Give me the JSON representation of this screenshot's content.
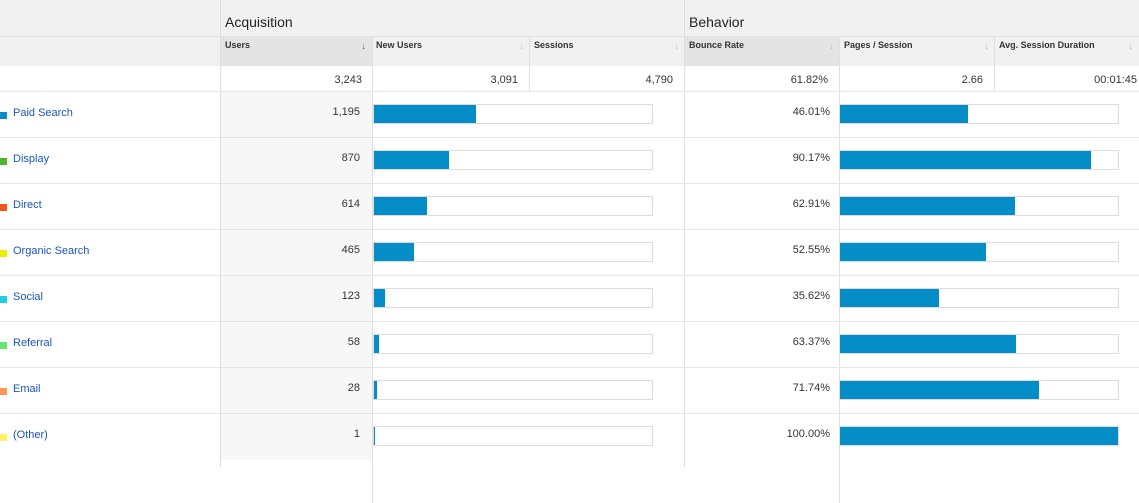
{
  "groups": {
    "acquisition": "Acquisition",
    "behavior": "Behavior"
  },
  "columns": {
    "users": "Users",
    "new_users": "New Users",
    "sessions": "Sessions",
    "bounce_rate": "Bounce Rate",
    "pages_session": "Pages / Session",
    "avg_session_duration": "Avg. Session Duration"
  },
  "icons": {
    "sort_active": "sort-down-arrow-icon",
    "sort_inactive": "sort-arrow-icon"
  },
  "sort_glyphs": {
    "active": "↓",
    "inactive": "↓"
  },
  "totals": {
    "users": "3,243",
    "new_users": "3,091",
    "sessions": "4,790",
    "bounce_rate": "61.82%",
    "pages_session": "2.66",
    "avg_session_duration": "00:01:45"
  },
  "bar_color": "#058dc7",
  "rows": [
    {
      "channel": "Paid Search",
      "color": "#058dc7",
      "users": "1,195",
      "users_share": 0.368,
      "bounce_rate": "46.01%",
      "bounce_share": 0.4601
    },
    {
      "channel": "Display",
      "color": "#50b432",
      "users": "870",
      "users_share": 0.268,
      "bounce_rate": "90.17%",
      "bounce_share": 0.9017
    },
    {
      "channel": "Direct",
      "color": "#ed561b",
      "users": "614",
      "users_share": 0.189,
      "bounce_rate": "62.91%",
      "bounce_share": 0.6291
    },
    {
      "channel": "Organic Search",
      "color": "#edef00",
      "users": "465",
      "users_share": 0.143,
      "bounce_rate": "52.55%",
      "bounce_share": 0.5255
    },
    {
      "channel": "Social",
      "color": "#24cbe5",
      "users": "123",
      "users_share": 0.038,
      "bounce_rate": "35.62%",
      "bounce_share": 0.3562
    },
    {
      "channel": "Referral",
      "color": "#64e572",
      "users": "58",
      "users_share": 0.018,
      "bounce_rate": "63.37%",
      "bounce_share": 0.6337
    },
    {
      "channel": "Email",
      "color": "#ff9655",
      "users": "28",
      "users_share": 0.009,
      "bounce_rate": "71.74%",
      "bounce_share": 0.7174
    },
    {
      "channel": "(Other)",
      "color": "#fff263",
      "users": "1",
      "users_share": 0.001,
      "bounce_rate": "100.00%",
      "bounce_share": 1.0
    }
  ]
}
